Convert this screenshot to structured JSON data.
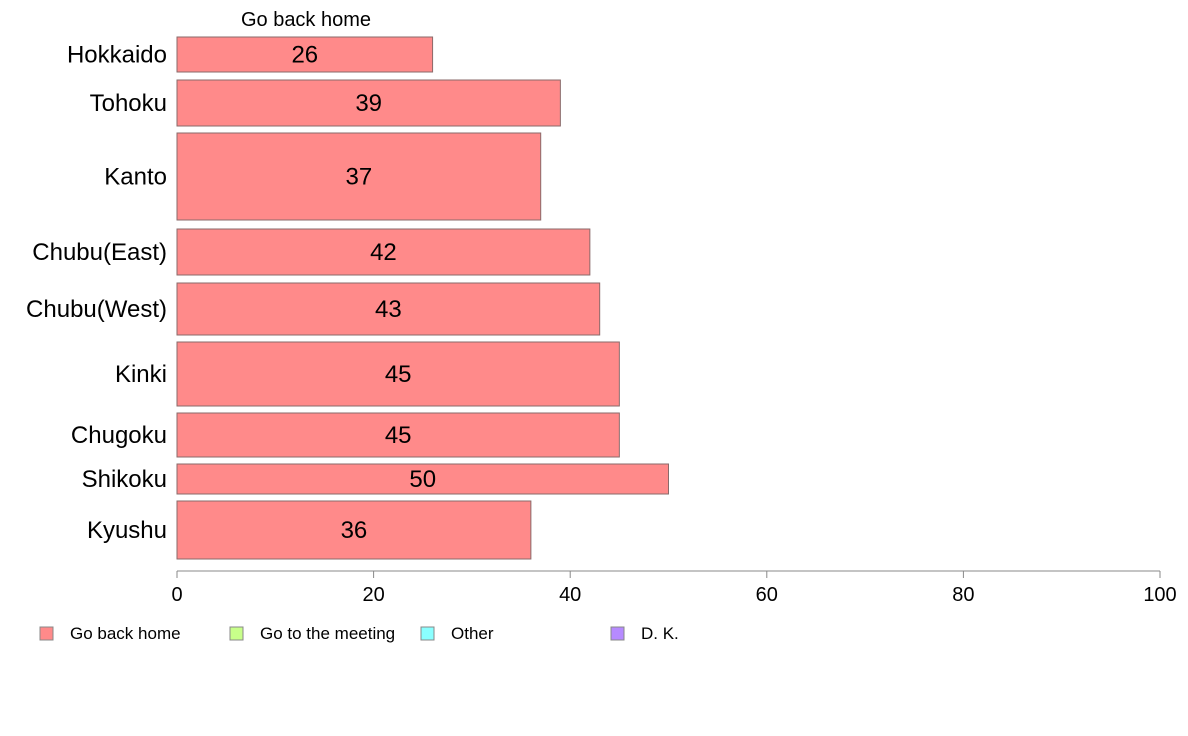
{
  "chart_data": {
    "type": "bar",
    "orientation": "horizontal",
    "title": "Go back home",
    "categories": [
      "Hokkaido",
      "Tohoku",
      "Kanto",
      "Chubu(East)",
      "Chubu(West)",
      "Kinki",
      "Chugoku",
      "Shikoku",
      "Kyushu"
    ],
    "values": [
      26,
      39,
      37,
      42,
      43,
      45,
      45,
      50,
      36
    ],
    "data_labels": [
      "26",
      "39",
      "37",
      "42",
      "43",
      "45",
      "45",
      "50",
      "36"
    ],
    "xlim": [
      0,
      100
    ],
    "xticks": [
      "0",
      "20",
      "40",
      "60",
      "80",
      "100"
    ],
    "xlabel": "",
    "ylabel": "",
    "grid": false,
    "legend_position": "bottom",
    "legend": [
      {
        "label": "Go back home",
        "color": "#ff8a8a"
      },
      {
        "label": "Go to the meeting",
        "color": "#c8ff8a"
      },
      {
        "label": "Other",
        "color": "#8affff"
      },
      {
        "label": "D. K.",
        "color": "#b68aff"
      }
    ],
    "bar_color": "#ff8a8a"
  }
}
